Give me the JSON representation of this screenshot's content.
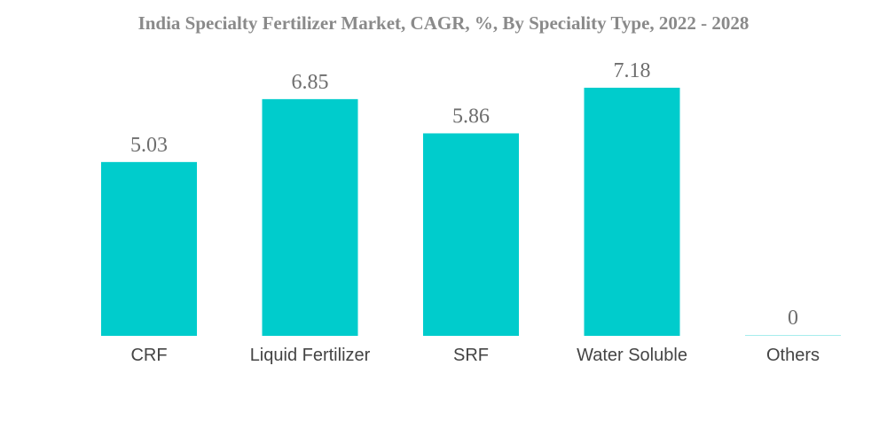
{
  "chart_data": {
    "type": "bar",
    "title": "India Specialty Fertilizer Market, CAGR, %, By Speciality Type, 2022 - 2028",
    "categories": [
      "CRF",
      "Liquid Fertilizer",
      "SRF",
      "Water Soluble",
      "Others"
    ],
    "values": [
      5.03,
      6.85,
      5.86,
      7.18,
      0
    ],
    "value_labels": [
      "5.03",
      "6.85",
      "5.86",
      "7.18",
      "0"
    ],
    "xlabel": "",
    "ylabel": "",
    "ylim": [
      0,
      7.18
    ],
    "grid": false,
    "legend": "none",
    "colors": {
      "bar": "#00cccc",
      "title": "#8a8a8a",
      "value_label": "#6e6e6e",
      "category_label": "#444444"
    }
  }
}
